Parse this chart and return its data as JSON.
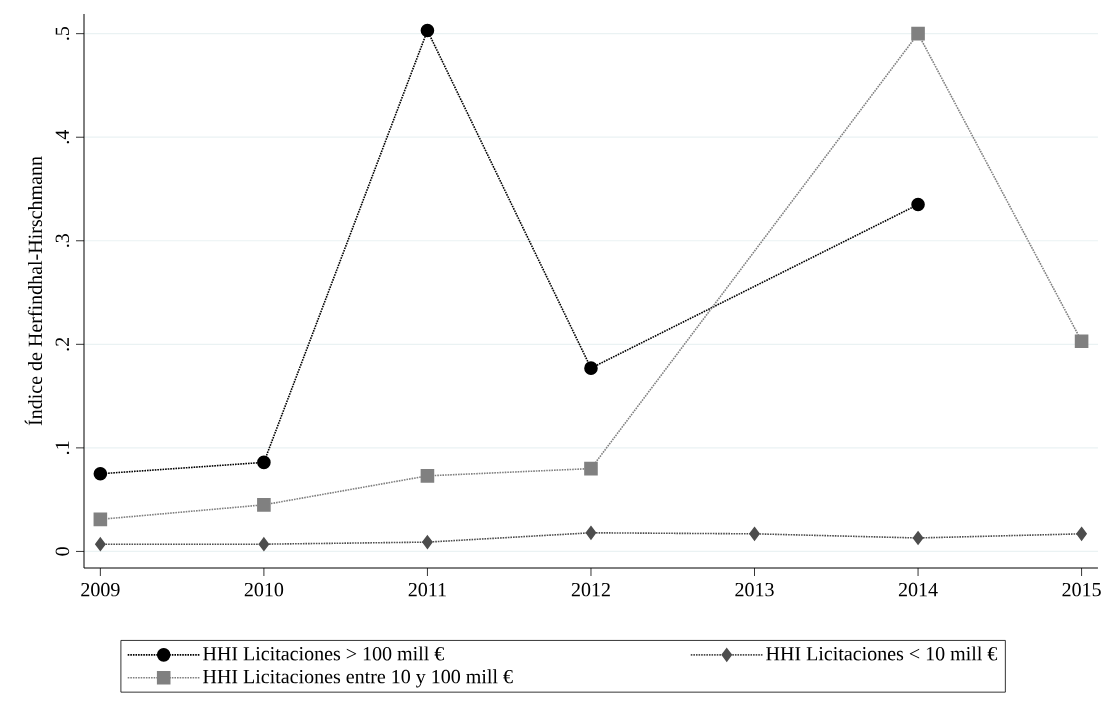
{
  "chart_data": {
    "type": "line",
    "ylabel": "Índice de Herfindhal-Hirschmann",
    "xlim": [
      2008.9,
      2015.1
    ],
    "ylim": [
      -0.016,
      0.519
    ],
    "xticks": [
      2009,
      2010,
      2011,
      2012,
      2013,
      2014,
      2015
    ],
    "yticks": [
      0,
      {
        "value": 0.1,
        "label": ".1"
      },
      {
        "value": 0.2,
        "label": ".2"
      },
      {
        "value": 0.3,
        "label": ".3"
      },
      {
        "value": 0.4,
        "label": ".4"
      },
      {
        "value": 0.5,
        "label": ".5"
      }
    ],
    "grid": "y",
    "legend": "bottom",
    "line_style": "dotted",
    "series": [
      {
        "name": "HHI Licitaciones > 100 mill €",
        "color": "#000000",
        "marker": "circle",
        "x": [
          2009,
          2010,
          2011,
          2012,
          2014
        ],
        "values": [
          0.075,
          0.086,
          0.503,
          0.177,
          0.335
        ]
      },
      {
        "name": "HHI Licitaciones < 10 mill €",
        "color": "#4d4d4d",
        "marker": "diamond",
        "x": [
          2009,
          2010,
          2011,
          2012,
          2013,
          2014,
          2015
        ],
        "values": [
          0.007,
          0.007,
          0.009,
          0.018,
          0.017,
          0.013,
          0.017
        ]
      },
      {
        "name": "HHI Licitaciones entre 10 y 100 mill €",
        "color": "#808080",
        "marker": "square",
        "x": [
          2009,
          2010,
          2011,
          2012,
          2014,
          2015
        ],
        "values": [
          0.031,
          0.045,
          0.073,
          0.08,
          0.5,
          0.203
        ]
      }
    ]
  }
}
